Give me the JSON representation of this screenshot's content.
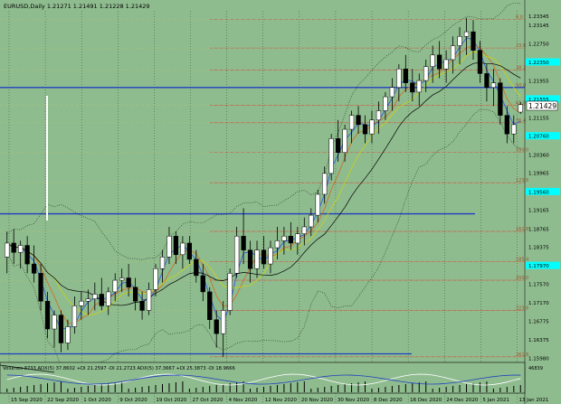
{
  "header": {
    "text": "EURUSD,Daily  1.21271  1.21491  1.21228  1.21429"
  },
  "indicator": {
    "text": "Volumes 3733  ADX(5) 37.8602  +DI 21.2597  -DI 21.2723  ADX(5) 37.3667  +DI 25.3873  -DI 18.9666"
  },
  "price_box": {
    "text": "1.21429"
  },
  "colors": {
    "background": "#8fbc8f",
    "bull": "#ffffff",
    "bear": "#000000",
    "blue_line": "#1f3fbf",
    "fibo": "#c0504d",
    "highlight": "#00ffff",
    "bands": "#1a2a1a"
  },
  "chart_data": {
    "type": "candlestick",
    "symbol": "EURUSD",
    "timeframe": "Daily",
    "ohlc": {
      "open": 1.21271,
      "high": 1.21491,
      "low": 1.21228,
      "close": 1.21429
    },
    "x_labels": [
      "15 Sep 2020",
      "22 Sep 2020",
      "1 Oct 2020",
      "9 Oct 2020",
      "19 Oct 2020",
      "27 Oct 2020",
      "4 Nov 2020",
      "12 Nov 2020",
      "20 Nov 2020",
      "30 Nov 2020",
      "8 Dec 2020",
      "16 Dec 2020",
      "24 Dec 2020",
      "5 Jan 2021",
      "13 Jan 2021"
    ],
    "y_labels": [
      "1.23345",
      "1.23145",
      "1.22750",
      "1.22350",
      "1.21955",
      "1.21555",
      "1.21155",
      "1.20760",
      "1.20360",
      "1.19965",
      "1.19560",
      "1.19165",
      "1.18765",
      "1.18375",
      "1.17970",
      "1.17570",
      "1.17170",
      "1.16775",
      "1.16375",
      "1.15980"
    ],
    "highlight_labels": [
      "1.22350",
      "1.21555",
      "1.20760",
      "1.19560",
      "1.17970"
    ],
    "ylim": [
      1.159,
      1.2345
    ],
    "fibo_levels": [
      {
        "label": "0.0",
        "price": 1.2327
      },
      {
        "label": "23.6",
        "price": 1.2265
      },
      {
        "label": "38.2",
        "price": 1.2218
      },
      {
        "label": "50.0",
        "price": 1.218
      },
      {
        "label": "61.8",
        "price": 1.2142
      },
      {
        "label": "76.4",
        "price": 1.2104
      },
      {
        "label": "100.0",
        "price": 1.204
      },
      {
        "label": "123.6",
        "price": 1.1975
      },
      {
        "label": "161.8",
        "price": 1.187
      },
      {
        "label": "185.4",
        "price": 1.1805
      },
      {
        "label": "200.0",
        "price": 1.1765
      },
      {
        "label": "223.6",
        "price": 1.17
      },
      {
        "label": "261.8",
        "price": 1.16
      }
    ],
    "horizontal_lines": [
      1.218,
      1.1908,
      1.16065
    ],
    "candles": [
      [
        1.1815,
        1.187,
        1.178,
        1.1845
      ],
      [
        1.1845,
        1.1875,
        1.18,
        1.1825
      ],
      [
        1.1825,
        1.185,
        1.179,
        1.184
      ],
      [
        1.184,
        1.186,
        1.178,
        1.18
      ],
      [
        1.18,
        1.184,
        1.176,
        1.178
      ],
      [
        1.178,
        1.18,
        1.17,
        1.172
      ],
      [
        1.172,
        1.174,
        1.164,
        1.166
      ],
      [
        1.166,
        1.17,
        1.162,
        1.169
      ],
      [
        1.169,
        1.17,
        1.161,
        1.163
      ],
      [
        1.163,
        1.168,
        1.1615,
        1.1665
      ],
      [
        1.1665,
        1.173,
        1.165,
        1.171
      ],
      [
        1.171,
        1.174,
        1.168,
        1.172
      ],
      [
        1.172,
        1.1745,
        1.169,
        1.1725
      ],
      [
        1.1725,
        1.176,
        1.17,
        1.1735
      ],
      [
        1.1735,
        1.177,
        1.17,
        1.171
      ],
      [
        1.171,
        1.175,
        1.169,
        1.174
      ],
      [
        1.174,
        1.178,
        1.172,
        1.1765
      ],
      [
        1.1765,
        1.179,
        1.174,
        1.177
      ],
      [
        1.177,
        1.18,
        1.173,
        1.175
      ],
      [
        1.175,
        1.177,
        1.17,
        1.172
      ],
      [
        1.172,
        1.174,
        1.168,
        1.17
      ],
      [
        1.17,
        1.176,
        1.169,
        1.1745
      ],
      [
        1.1745,
        1.18,
        1.173,
        1.179
      ],
      [
        1.179,
        1.183,
        1.176,
        1.1815
      ],
      [
        1.1815,
        1.188,
        1.18,
        1.186
      ],
      [
        1.186,
        1.187,
        1.18,
        1.182
      ],
      [
        1.182,
        1.186,
        1.179,
        1.1845
      ],
      [
        1.1845,
        1.186,
        1.18,
        1.181
      ],
      [
        1.181,
        1.183,
        1.176,
        1.1775
      ],
      [
        1.1775,
        1.18,
        1.172,
        1.174
      ],
      [
        1.174,
        1.175,
        1.166,
        1.168
      ],
      [
        1.168,
        1.17,
        1.162,
        1.165
      ],
      [
        1.165,
        1.172,
        1.16,
        1.17
      ],
      [
        1.17,
        1.179,
        1.169,
        1.178
      ],
      [
        1.178,
        1.188,
        1.177,
        1.186
      ],
      [
        1.186,
        1.192,
        1.18,
        1.183
      ],
      [
        1.183,
        1.185,
        1.176,
        1.179
      ],
      [
        1.179,
        1.185,
        1.177,
        1.183
      ],
      [
        1.183,
        1.186,
        1.179,
        1.18
      ],
      [
        1.18,
        1.185,
        1.178,
        1.1835
      ],
      [
        1.1835,
        1.188,
        1.181,
        1.185
      ],
      [
        1.185,
        1.188,
        1.182,
        1.186
      ],
      [
        1.186,
        1.189,
        1.183,
        1.1845
      ],
      [
        1.1845,
        1.188,
        1.182,
        1.1865
      ],
      [
        1.1865,
        1.19,
        1.184,
        1.188
      ],
      [
        1.188,
        1.192,
        1.186,
        1.1905
      ],
      [
        1.1905,
        1.196,
        1.189,
        1.195
      ],
      [
        1.195,
        1.201,
        1.193,
        1.1995
      ],
      [
        1.1995,
        1.208,
        1.198,
        1.207
      ],
      [
        1.207,
        1.211,
        1.202,
        1.204
      ],
      [
        1.204,
        1.21,
        1.202,
        1.209
      ],
      [
        1.209,
        1.213,
        1.206,
        1.212
      ],
      [
        1.212,
        1.214,
        1.208,
        1.21
      ],
      [
        1.21,
        1.212,
        1.206,
        1.208
      ],
      [
        1.208,
        1.213,
        1.206,
        1.211
      ],
      [
        1.211,
        1.215,
        1.208,
        1.213
      ],
      [
        1.213,
        1.217,
        1.211,
        1.216
      ],
      [
        1.216,
        1.22,
        1.213,
        1.218
      ],
      [
        1.218,
        1.223,
        1.215,
        1.222
      ],
      [
        1.222,
        1.225,
        1.217,
        1.219
      ],
      [
        1.219,
        1.222,
        1.215,
        1.217
      ],
      [
        1.217,
        1.221,
        1.214,
        1.2195
      ],
      [
        1.2195,
        1.224,
        1.217,
        1.2225
      ],
      [
        1.2225,
        1.227,
        1.219,
        1.225
      ],
      [
        1.225,
        1.228,
        1.22,
        1.222
      ],
      [
        1.222,
        1.226,
        1.219,
        1.224
      ],
      [
        1.224,
        1.229,
        1.221,
        1.227
      ],
      [
        1.227,
        1.231,
        1.223,
        1.229
      ],
      [
        1.229,
        1.233,
        1.225,
        1.23
      ],
      [
        1.23,
        1.2325,
        1.224,
        1.226
      ],
      [
        1.226,
        1.228,
        1.219,
        1.221
      ],
      [
        1.221,
        1.223,
        1.215,
        1.218
      ],
      [
        1.218,
        1.222,
        1.214,
        1.219
      ],
      [
        1.219,
        1.22,
        1.21,
        1.212
      ],
      [
        1.212,
        1.214,
        1.206,
        1.208
      ],
      [
        1.208,
        1.212,
        1.206,
        1.21
      ],
      [
        1.2127,
        1.2149,
        1.2123,
        1.2143
      ]
    ]
  }
}
